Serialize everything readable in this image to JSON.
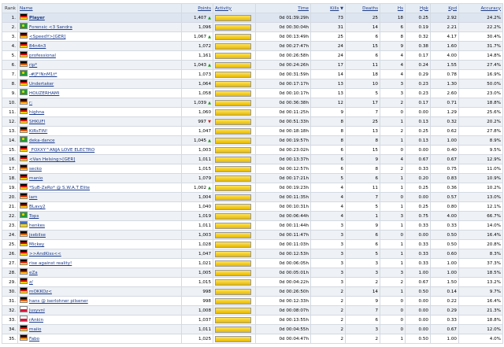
{
  "headers": {
    "rank": "Rank",
    "name": "Name",
    "points": "Points",
    "activity": "Activity",
    "time": "Time",
    "kills": "Kills",
    "deaths": "Deaths",
    "hs": "Hs",
    "hpk": "Hpk",
    "kpd": "Kpd",
    "accuracy": "Accuracy",
    "kills_sort_icon": "sort-desc-icon"
  },
  "rows": [
    {
      "rank": "1.",
      "name": "Player",
      "flag": "de",
      "points": "1,407",
      "trend": "up",
      "activity": 1.0,
      "time": "0d 01:39:29h",
      "kills": "73",
      "deaths": "25",
      "hs": "18",
      "hpk": "0.25",
      "kpd": "2.92",
      "acc": "24.2%",
      "highlight": true
    },
    {
      "rank": "2.",
      "name": "Forensic <3 Sandra",
      "flag": "br",
      "points": "1,096",
      "trend": "",
      "activity": 1.0,
      "time": "0d 00:30:04h",
      "kills": "31",
      "deaths": "14",
      "hs": "6",
      "hpk": "0.19",
      "kpd": "2.21",
      "acc": "22.2%"
    },
    {
      "rank": "3.",
      "name": "<SpeedY>[GER]",
      "flag": "de",
      "points": "1,067",
      "trend": "up",
      "activity": 1.0,
      "time": "0d 00:13:49h",
      "kills": "25",
      "deaths": "6",
      "hs": "8",
      "hpk": "0.32",
      "kpd": "4.17",
      "acc": "30.4%"
    },
    {
      "rank": "4.",
      "name": "84n4n3",
      "flag": "de",
      "points": "1,072",
      "trend": "",
      "activity": 1.0,
      "time": "0d 00:27:47h",
      "kills": "24",
      "deaths": "15",
      "hs": "9",
      "hpk": "0.38",
      "kpd": "1.60",
      "acc": "31.7%"
    },
    {
      "rank": "5.",
      "name": "professional",
      "flag": "de",
      "points": "1,161",
      "trend": "",
      "activity": 1.0,
      "time": "0d 00:26:58h",
      "kills": "24",
      "deaths": "6",
      "hs": "4",
      "hpk": "0.17",
      "kpd": "4.00",
      "acc": "14.8%"
    },
    {
      "rank": "6.",
      "name": "rip*",
      "flag": "de",
      "points": "1,043",
      "trend": "up",
      "activity": 1.0,
      "time": "0d 00:24:26h",
      "kills": "17",
      "deaths": "11",
      "hs": "4",
      "hpk": "0.24",
      "kpd": "1.55",
      "acc": "27.4%"
    },
    {
      "rank": "7.",
      "name": "-#[F!NnM1t*",
      "flag": "br",
      "points": "1,073",
      "trend": "",
      "activity": 1.0,
      "time": "0d 00:31:59h",
      "kills": "14",
      "deaths": "18",
      "hs": "4",
      "hpk": "0.29",
      "kpd": "0.78",
      "acc": "16.9%"
    },
    {
      "rank": "8.",
      "name": "Undertaker",
      "flag": "de",
      "points": "1,064",
      "trend": "",
      "activity": 1.0,
      "time": "0d 00:17:17h",
      "kills": "13",
      "deaths": "10",
      "hs": "3",
      "hpk": "0.23",
      "kpd": "1.30",
      "acc": "50.0%"
    },
    {
      "rank": "9.",
      "name": "HOUZERHAMI",
      "flag": "br",
      "points": "1,058",
      "trend": "",
      "activity": 1.0,
      "time": "0d 00:10:17h",
      "kills": "13",
      "deaths": "5",
      "hs": "3",
      "hpk": "0.23",
      "kpd": "2.60",
      "acc": "23.0%"
    },
    {
      "rank": "10.",
      "name": "r:",
      "flag": "de",
      "points": "1,039",
      "trend": "up",
      "activity": 1.0,
      "time": "0d 00:36:38h",
      "kills": "12",
      "deaths": "17",
      "hs": "2",
      "hpk": "0.17",
      "kpd": "0.71",
      "acc": "18.8%"
    },
    {
      "rank": "11.",
      "name": "highna",
      "flag": "de",
      "points": "1,060",
      "trend": "",
      "activity": 1.0,
      "time": "0d 00:11:25h",
      "kills": "9",
      "deaths": "7",
      "hs": "0",
      "hpk": "0.00",
      "kpd": "1.29",
      "acc": "25.6%"
    },
    {
      "rank": "12.",
      "name": "SHKUFI",
      "flag": "de",
      "points": "997",
      "trend": "down",
      "activity": 1.0,
      "time": "0d 00:51:33h",
      "kills": "8",
      "deaths": "25",
      "hs": "1",
      "hpk": "0.13",
      "kpd": "0.32",
      "acc": "20.2%"
    },
    {
      "rank": "13.",
      "name": "KiRsTiN!",
      "flag": "de",
      "points": "1,047",
      "trend": "",
      "activity": 1.0,
      "time": "0d 00:18:18h",
      "kills": "8",
      "deaths": "13",
      "hs": "2",
      "hpk": "0.25",
      "kpd": "0.62",
      "acc": "27.8%"
    },
    {
      "rank": "14.",
      "name": "deka-dance",
      "flag": "br",
      "points": "1,045",
      "trend": "up",
      "activity": 1.0,
      "time": "0d 00:19:57h",
      "kills": "8",
      "deaths": "8",
      "hs": "1",
      "hpk": "0.13",
      "kpd": "1.00",
      "acc": "8.9%"
    },
    {
      "rank": "15.",
      "name": "_FOXXY^ANJA LOVE ELECTRO",
      "flag": "de",
      "points": "1,003",
      "trend": "",
      "activity": 1.0,
      "time": "0d 00:23:02h",
      "kills": "6",
      "deaths": "15",
      "hs": "0",
      "hpk": "0.00",
      "kpd": "0.40",
      "acc": "9.5%"
    },
    {
      "rank": "16.",
      "name": "<Van Helsing>[GER]",
      "flag": "de",
      "points": "1,011",
      "trend": "",
      "activity": 1.0,
      "time": "0d 00:13:37h",
      "kills": "6",
      "deaths": "9",
      "hs": "4",
      "hpk": "0.67",
      "kpd": "0.67",
      "acc": "12.9%"
    },
    {
      "rank": "17.",
      "name": "secko",
      "flag": "de",
      "points": "1,015",
      "trend": "",
      "activity": 1.0,
      "time": "0d 00:12:57h",
      "kills": "6",
      "deaths": "8",
      "hs": "2",
      "hpk": "0.33",
      "kpd": "0.75",
      "acc": "11.0%"
    },
    {
      "rank": "18.",
      "name": "manio",
      "flag": "de",
      "points": "1,079",
      "trend": "",
      "activity": 1.0,
      "time": "0d 00:17:21h",
      "kills": "5",
      "deaths": "6",
      "hs": "1",
      "hpk": "0.20",
      "kpd": "0.83",
      "acc": "10.9%"
    },
    {
      "rank": "19.",
      "name": "*SuB-ZeRo* @ S.W.A.T Elite",
      "flag": "de",
      "points": "1,002",
      "trend": "up",
      "activity": 1.0,
      "time": "0d 00:19:23h",
      "kills": "4",
      "deaths": "11",
      "hs": "1",
      "hpk": "0.25",
      "kpd": "0.36",
      "acc": "10.2%"
    },
    {
      "rank": "20.",
      "name": "iam",
      "flag": "de",
      "points": "1,004",
      "trend": "",
      "activity": 1.0,
      "time": "0d 00:11:35h",
      "kills": "4",
      "deaths": "7",
      "hs": "0",
      "hpk": "0.00",
      "kpd": "0.57",
      "acc": "13.0%"
    },
    {
      "rank": "21.",
      "name": "BLavy2",
      "flag": "de",
      "points": "1,040",
      "trend": "",
      "activity": 1.0,
      "time": "0d 00:10:31h",
      "kills": "4",
      "deaths": "5",
      "hs": "1",
      "hpk": "0.25",
      "kpd": "0.80",
      "acc": "12.1%"
    },
    {
      "rank": "22.",
      "name": "Tops",
      "flag": "br",
      "points": "1,019",
      "trend": "",
      "activity": 1.0,
      "time": "0d 00:06:44h",
      "kills": "4",
      "deaths": "1",
      "hs": "3",
      "hpk": "0.75",
      "kpd": "4.00",
      "acc": "66.7%"
    },
    {
      "rank": "23.",
      "name": "henkes",
      "flag": "ua",
      "points": "1,011",
      "trend": "",
      "activity": 1.0,
      "time": "0d 00:11:44h",
      "kills": "3",
      "deaths": "9",
      "hs": "1",
      "hpk": "0.33",
      "kpd": "0.33",
      "acc": "14.0%"
    },
    {
      "rank": "24.",
      "name": "jsebilse",
      "flag": "de",
      "points": "1,003",
      "trend": "",
      "activity": 1.0,
      "time": "0d 00:11:47h",
      "kills": "3",
      "deaths": "6",
      "hs": "0",
      "hpk": "0.00",
      "kpd": "0.50",
      "acc": "16.4%"
    },
    {
      "rank": "25.",
      "name": "Mickey",
      "flag": "de",
      "points": "1,028",
      "trend": "",
      "activity": 1.0,
      "time": "0d 00:11:03h",
      "kills": "3",
      "deaths": "6",
      "hs": "1",
      "hpk": "0.33",
      "kpd": "0.50",
      "acc": "20.8%"
    },
    {
      "rank": "26.",
      "name": ">>AndKiss<<",
      "flag": "de",
      "points": "1,047",
      "trend": "",
      "activity": 1.0,
      "time": "0d 00:12:53h",
      "kills": "3",
      "deaths": "5",
      "hs": "1",
      "hpk": "0.33",
      "kpd": "0.60",
      "acc": "8.3%"
    },
    {
      "rank": "27.",
      "name": "rise against reality!",
      "flag": "de",
      "points": "1,021",
      "trend": "",
      "activity": 1.0,
      "time": "0d 00:06:05h",
      "kills": "3",
      "deaths": "3",
      "hs": "1",
      "hpk": "0.33",
      "kpd": "1.00",
      "acc": "37.3%"
    },
    {
      "rank": "28.",
      "name": "eZa",
      "flag": "de",
      "points": "1,005",
      "trend": "",
      "activity": 1.0,
      "time": "0d 00:05:01h",
      "kills": "3",
      "deaths": "3",
      "hs": "3",
      "hpk": "1.00",
      "kpd": "1.00",
      "acc": "18.5%"
    },
    {
      "rank": "29.",
      "name": "z/",
      "flag": "de",
      "points": "1,015",
      "trend": "",
      "activity": 1.0,
      "time": "0d 00:04:22h",
      "kills": "3",
      "deaths": "2",
      "hs": "2",
      "hpk": "0.67",
      "kpd": "1.50",
      "acc": "13.2%"
    },
    {
      "rank": "30.",
      "name": "mOKKOz<",
      "flag": "de",
      "points": "998",
      "trend": "",
      "activity": 1.0,
      "time": "0d 00:26:50h",
      "kills": "2",
      "deaths": "14",
      "hs": "1",
      "hpk": "0.50",
      "kpd": "0.14",
      "acc": "9.7%"
    },
    {
      "rank": "31.",
      "name": "hans @ iserlohner pilsener",
      "flag": "de",
      "points": "998",
      "trend": "",
      "activity": 1.0,
      "time": "0d 00:12:33h",
      "kills": "2",
      "deaths": "9",
      "hs": "0",
      "hpk": "0.00",
      "kpd": "0.22",
      "acc": "16.4%"
    },
    {
      "rank": "32.",
      "name": "Jusyvnl",
      "flag": "pl",
      "points": "1,008",
      "trend": "",
      "activity": 1.0,
      "time": "0d 00:08:07h",
      "kills": "2",
      "deaths": "7",
      "hs": "0",
      "hpk": "0.00",
      "kpd": "0.29",
      "acc": "21.3%"
    },
    {
      "rank": "33.",
      "name": "rAnkin",
      "flag": "pl",
      "points": "1,037",
      "trend": "",
      "activity": 1.0,
      "time": "0d 00:13:55h",
      "kills": "2",
      "deaths": "6",
      "hs": "0",
      "hpk": "0.00",
      "kpd": "0.33",
      "acc": "18.8%"
    },
    {
      "rank": "34.",
      "name": "maiio",
      "flag": "de",
      "points": "1,011",
      "trend": "",
      "activity": 1.0,
      "time": "0d 00:04:55h",
      "kills": "2",
      "deaths": "3",
      "hs": "0",
      "hpk": "0.00",
      "kpd": "0.67",
      "acc": "12.0%"
    },
    {
      "rank": "35.",
      "name": "Fabo",
      "flag": "de",
      "points": "1,025",
      "trend": "",
      "activity": 1.0,
      "time": "0d 00:04:47h",
      "kills": "2",
      "deaths": "2",
      "hs": "1",
      "hpk": "0.50",
      "kpd": "1.00",
      "acc": "4.0%"
    }
  ]
}
